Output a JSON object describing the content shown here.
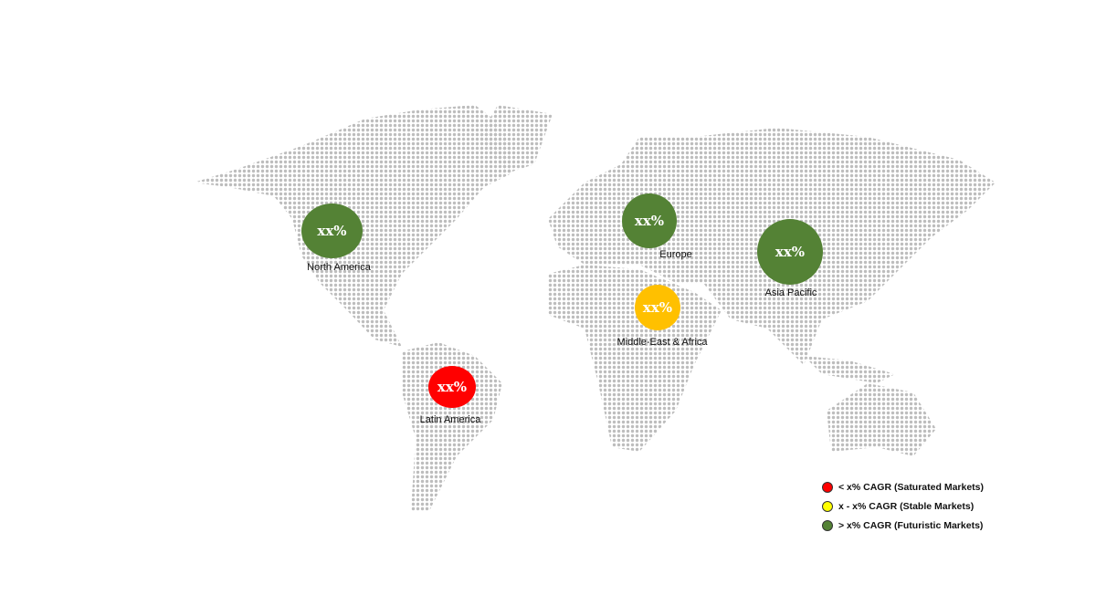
{
  "regions": [
    {
      "name": "North America",
      "value": "xx%",
      "color": "#548235"
    },
    {
      "name": "Europe",
      "value": "xx%",
      "color": "#548235"
    },
    {
      "name": "Asia Pacific",
      "value": "xx%",
      "color": "#548235"
    },
    {
      "name": "Middle-East & Africa",
      "value": "xx%",
      "color": "#FFC000"
    },
    {
      "name": "Latin America",
      "value": "xx%",
      "color": "#FF0000"
    }
  ],
  "legend": [
    {
      "label": "< x% CAGR (Saturated Markets)",
      "color": "#FF0000"
    },
    {
      "label": "x - x% CAGR (Stable Markets)",
      "color": "#FFFF00"
    },
    {
      "label": "> x% CAGR (Futuristic Markets)",
      "color": "#548235"
    }
  ],
  "map_dot_color": "#BDBDBD"
}
